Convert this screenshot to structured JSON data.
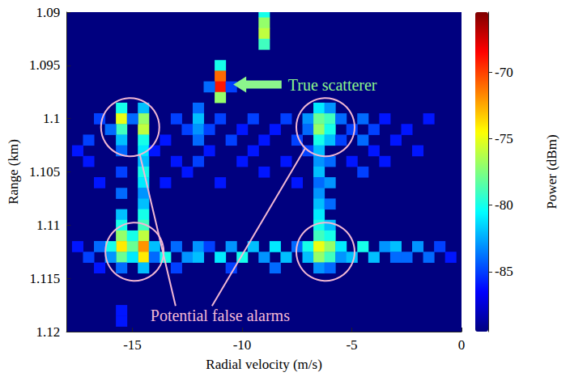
{
  "chart_data": {
    "type": "heatmap",
    "x_label": "Radial velocity (m/s)",
    "y_label": "Range (km)",
    "xlim": [
      -18,
      0
    ],
    "xticks": [
      -15,
      -10,
      -5,
      0
    ],
    "ylim": [
      1.09,
      1.12
    ],
    "yticks": [
      1.09,
      1.095,
      1.1,
      1.105,
      1.11,
      1.115,
      1.12
    ],
    "grid": false,
    "cells": [
      [
        -9,
        1.09,
        -80
      ],
      [
        -9,
        1.091,
        -77
      ],
      [
        -9,
        1.092,
        -76
      ],
      [
        -9,
        1.093,
        -79
      ],
      [
        -11,
        1.095,
        -80
      ],
      [
        -11,
        1.096,
        -71
      ],
      [
        -11,
        1.097,
        -69
      ],
      [
        -11,
        1.098,
        -77
      ],
      [
        -11.5,
        1.097,
        -84
      ],
      [
        -10.5,
        1.097,
        -85
      ],
      [
        -15.5,
        1.099,
        -80
      ],
      [
        -15.5,
        1.1,
        -75
      ],
      [
        -15.5,
        1.101,
        -79
      ],
      [
        -15.5,
        1.102,
        -82
      ],
      [
        -15.5,
        1.103,
        -84
      ],
      [
        -15.5,
        1.105,
        -85
      ],
      [
        -15.5,
        1.107,
        -84
      ],
      [
        -15.5,
        1.109,
        -82
      ],
      [
        -15.5,
        1.11,
        -80
      ],
      [
        -15.5,
        1.111,
        -77
      ],
      [
        -15.5,
        1.112,
        -74
      ],
      [
        -15.5,
        1.113,
        -78
      ],
      [
        -15.5,
        1.114,
        -84
      ],
      [
        -15.5,
        1.118,
        -86
      ],
      [
        -15.5,
        1.119,
        -86
      ],
      [
        -14.5,
        1.099,
        -82
      ],
      [
        -14.5,
        1.1,
        -77
      ],
      [
        -14.5,
        1.101,
        -76
      ],
      [
        -14.5,
        1.102,
        -80
      ],
      [
        -14.5,
        1.103,
        -81
      ],
      [
        -14.5,
        1.104,
        -82
      ],
      [
        -14.5,
        1.105,
        -80
      ],
      [
        -14.5,
        1.106,
        -81
      ],
      [
        -14.5,
        1.107,
        -83
      ],
      [
        -14.5,
        1.108,
        -82
      ],
      [
        -14.5,
        1.109,
        -80
      ],
      [
        -14.5,
        1.11,
        -79
      ],
      [
        -14.5,
        1.111,
        -76
      ],
      [
        -14.5,
        1.112,
        -72
      ],
      [
        -14.5,
        1.113,
        -74
      ],
      [
        -14.5,
        1.114,
        -82
      ],
      [
        -15,
        1.1,
        -84
      ],
      [
        -15,
        1.111,
        -80
      ],
      [
        -15,
        1.112,
        -78
      ],
      [
        -15,
        1.113,
        -81
      ],
      [
        -16,
        1.101,
        -84
      ],
      [
        -16,
        1.112,
        -80
      ],
      [
        -16,
        1.113,
        -83
      ],
      [
        -17,
        1.102,
        -85
      ],
      [
        -17,
        1.104,
        -86
      ],
      [
        -17,
        1.113,
        -85
      ],
      [
        -16.5,
        1.1,
        -85
      ],
      [
        -16.5,
        1.106,
        -86
      ],
      [
        -16.5,
        1.112,
        -84
      ],
      [
        -16.5,
        1.114,
        -86
      ],
      [
        -17.5,
        1.103,
        -86
      ],
      [
        -17.5,
        1.112,
        -86
      ],
      [
        -14,
        1.103,
        -86
      ],
      [
        -14,
        1.112,
        -82
      ],
      [
        -14,
        1.113,
        -84
      ],
      [
        -13.5,
        1.102,
        -86
      ],
      [
        -13.5,
        1.106,
        -86
      ],
      [
        -13.5,
        1.113,
        -80
      ],
      [
        -13,
        1.1,
        -85
      ],
      [
        -13,
        1.104,
        -86
      ],
      [
        -13,
        1.112,
        -84
      ],
      [
        -13,
        1.114,
        -85
      ],
      [
        -12.5,
        1.101,
        -85
      ],
      [
        -12.5,
        1.105,
        -86
      ],
      [
        -12.5,
        1.113,
        -83
      ],
      [
        -12,
        1.099,
        -84
      ],
      [
        -12,
        1.1,
        -82
      ],
      [
        -12,
        1.101,
        -83
      ],
      [
        -12,
        1.102,
        -84
      ],
      [
        -12,
        1.104,
        -85
      ],
      [
        -12,
        1.112,
        -83
      ],
      [
        -12,
        1.113,
        -82
      ],
      [
        -11.5,
        1.101,
        -85
      ],
      [
        -11.5,
        1.103,
        -86
      ],
      [
        -11.5,
        1.112,
        -85
      ],
      [
        -11,
        1.1,
        -85
      ],
      [
        -11,
        1.106,
        -86
      ],
      [
        -11,
        1.113,
        -81
      ],
      [
        -10.5,
        1.102,
        -85
      ],
      [
        -10.5,
        1.112,
        -83
      ],
      [
        -10.5,
        1.114,
        -85
      ],
      [
        -10,
        1.101,
        -86
      ],
      [
        -10,
        1.104,
        -86
      ],
      [
        -10,
        1.113,
        -80
      ],
      [
        -9.5,
        1.1,
        -85
      ],
      [
        -9.5,
        1.103,
        -86
      ],
      [
        -9.5,
        1.112,
        -82
      ],
      [
        -9,
        1.102,
        -86
      ],
      [
        -9,
        1.105,
        -86
      ],
      [
        -9,
        1.113,
        -83
      ],
      [
        -8.5,
        1.101,
        -86
      ],
      [
        -8.5,
        1.112,
        -81
      ],
      [
        -8.5,
        1.114,
        -84
      ],
      [
        -8,
        1.1,
        -85
      ],
      [
        -8,
        1.104,
        -86
      ],
      [
        -8,
        1.113,
        -82
      ],
      [
        -7.5,
        1.102,
        -85
      ],
      [
        -7.5,
        1.106,
        -86
      ],
      [
        -7.5,
        1.112,
        -84
      ],
      [
        -7,
        1.1,
        -83
      ],
      [
        -7,
        1.101,
        -84
      ],
      [
        -7,
        1.103,
        -85
      ],
      [
        -7,
        1.112,
        -80
      ],
      [
        -7,
        1.113,
        -82
      ],
      [
        -6.5,
        1.099,
        -81
      ],
      [
        -6.5,
        1.1,
        -78
      ],
      [
        -6.5,
        1.101,
        -77
      ],
      [
        -6.5,
        1.102,
        -80
      ],
      [
        -6.5,
        1.103,
        -82
      ],
      [
        -6.5,
        1.104,
        -83
      ],
      [
        -6.5,
        1.105,
        -82
      ],
      [
        -6.5,
        1.106,
        -84
      ],
      [
        -6.5,
        1.107,
        -83
      ],
      [
        -6.5,
        1.108,
        -82
      ],
      [
        -6.5,
        1.109,
        -81
      ],
      [
        -6.5,
        1.11,
        -80
      ],
      [
        -6.5,
        1.111,
        -79
      ],
      [
        -6.5,
        1.112,
        -75
      ],
      [
        -6.5,
        1.113,
        -77
      ],
      [
        -6.5,
        1.114,
        -83
      ],
      [
        -6,
        1.099,
        -83
      ],
      [
        -6,
        1.1,
        -79
      ],
      [
        -6,
        1.101,
        -80
      ],
      [
        -6,
        1.102,
        -82
      ],
      [
        -6,
        1.104,
        -84
      ],
      [
        -6,
        1.106,
        -83
      ],
      [
        -6,
        1.108,
        -84
      ],
      [
        -6,
        1.11,
        -82
      ],
      [
        -6,
        1.111,
        -80
      ],
      [
        -6,
        1.112,
        -77
      ],
      [
        -6,
        1.113,
        -79
      ],
      [
        -6,
        1.114,
        -84
      ],
      [
        -5.5,
        1.1,
        -84
      ],
      [
        -5.5,
        1.102,
        -85
      ],
      [
        -5.5,
        1.112,
        -81
      ],
      [
        -5.5,
        1.113,
        -83
      ],
      [
        -5,
        1.101,
        -85
      ],
      [
        -5,
        1.104,
        -86
      ],
      [
        -5,
        1.113,
        -82
      ],
      [
        -4.5,
        1.1,
        -84
      ],
      [
        -4.5,
        1.102,
        -84
      ],
      [
        -4.5,
        1.105,
        -85
      ],
      [
        -4.5,
        1.112,
        -80
      ],
      [
        -4,
        1.101,
        -85
      ],
      [
        -4,
        1.103,
        -86
      ],
      [
        -4,
        1.113,
        -82
      ],
      [
        -3.5,
        1.1,
        -86
      ],
      [
        -3.5,
        1.104,
        -86
      ],
      [
        -3.5,
        1.112,
        -83
      ],
      [
        -3,
        1.102,
        -86
      ],
      [
        -3,
        1.112,
        -82
      ],
      [
        -3,
        1.113,
        -84
      ],
      [
        -2.5,
        1.101,
        -86
      ],
      [
        -2.5,
        1.113,
        -84
      ],
      [
        -2,
        1.103,
        -86
      ],
      [
        -2,
        1.112,
        -83
      ],
      [
        -1.5,
        1.1,
        -86
      ],
      [
        -1.5,
        1.113,
        -84
      ],
      [
        -1,
        1.112,
        -85
      ],
      [
        -0.5,
        1.113,
        -86
      ]
    ],
    "colorbar": {
      "label": "Power (dBm)",
      "range": [
        -89.5,
        -65.5
      ],
      "ticks": [
        -85,
        -80,
        -75,
        -70
      ],
      "colors": [
        "#00007f",
        "#0000ff",
        "#007fff",
        "#00ffff",
        "#7fff7f",
        "#ffff00",
        "#ff7f00",
        "#ff0000",
        "#7f0000"
      ]
    },
    "annotations": [
      {
        "text": "True scatterer",
        "color": "#8cf58c"
      },
      {
        "text": "Potential false alarms",
        "color": "#f2b8d4"
      }
    ]
  }
}
